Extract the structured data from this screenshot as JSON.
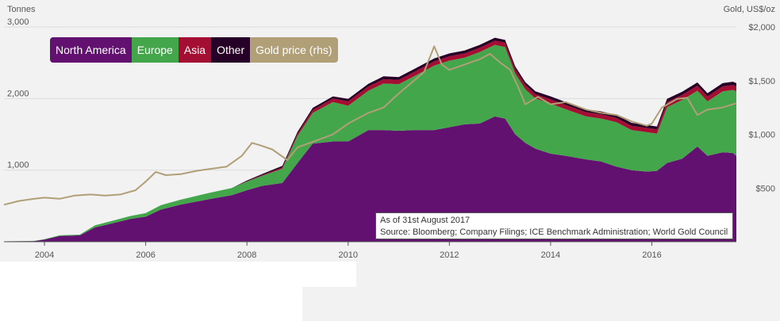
{
  "chart_data": {
    "type": "area",
    "title": "",
    "ylabel_left": "Tonnes",
    "ylabel_right": "Gold, US$/oz",
    "x_ticks": [
      2004,
      2006,
      2008,
      2010,
      2012,
      2014,
      2016
    ],
    "x_range": [
      2003.2,
      2017.67
    ],
    "y_left_ticks": [
      "3,000",
      "2,000",
      "1,000"
    ],
    "y_left_tick_values": [
      3000,
      2000,
      1000
    ],
    "y_left_range": [
      0,
      3000
    ],
    "y_right_ticks": [
      "$2,000",
      "$1,500",
      "$1,000",
      "$500"
    ],
    "y_right_tick_values": [
      2000,
      1500,
      1000,
      500
    ],
    "y_right_range": [
      0,
      2000
    ],
    "stacked": true,
    "x": [
      2003.2,
      2003.8,
      2004.0,
      2004.3,
      2004.7,
      2005.0,
      2005.3,
      2005.7,
      2006.0,
      2006.3,
      2006.7,
      2007.0,
      2007.3,
      2007.7,
      2008.0,
      2008.3,
      2008.7,
      2009.0,
      2009.3,
      2009.7,
      2010.0,
      2010.4,
      2010.7,
      2011.0,
      2011.3,
      2011.7,
      2012.0,
      2012.3,
      2012.6,
      2012.9,
      2013.1,
      2013.3,
      2013.5,
      2013.7,
      2014.0,
      2014.3,
      2014.7,
      2015.0,
      2015.3,
      2015.6,
      2015.9,
      2016.1,
      2016.3,
      2016.6,
      2016.9,
      2017.1,
      2017.4,
      2017.6,
      2017.67
    ],
    "series": [
      {
        "name": "North America",
        "color": "#631170",
        "values": [
          5,
          10,
          30,
          80,
          90,
          200,
          250,
          320,
          350,
          450,
          520,
          560,
          600,
          650,
          720,
          780,
          820,
          1100,
          1370,
          1400,
          1400,
          1560,
          1560,
          1550,
          1560,
          1560,
          1600,
          1640,
          1650,
          1750,
          1720,
          1500,
          1380,
          1300,
          1230,
          1200,
          1150,
          1120,
          1050,
          1000,
          980,
          990,
          1100,
          1160,
          1330,
          1200,
          1250,
          1240,
          1200
        ]
      },
      {
        "name": "Europe",
        "color": "#43a64b",
        "values": [
          1,
          2,
          5,
          10,
          10,
          30,
          35,
          40,
          50,
          60,
          70,
          80,
          90,
          100,
          120,
          140,
          200,
          380,
          430,
          550,
          500,
          550,
          650,
          650,
          750,
          900,
          930,
          930,
          1000,
          1000,
          1000,
          850,
          750,
          700,
          700,
          650,
          600,
          600,
          620,
          560,
          550,
          520,
          780,
          820,
          780,
          760,
          850,
          880,
          900
        ]
      },
      {
        "name": "Asia",
        "color": "#a40e32",
        "values": [
          0,
          0,
          0,
          0,
          0,
          0,
          0,
          0,
          0,
          0,
          0,
          0,
          0,
          0,
          5,
          10,
          20,
          30,
          40,
          50,
          60,
          60,
          60,
          60,
          60,
          60,
          60,
          60,
          60,
          60,
          60,
          60,
          60,
          60,
          60,
          60,
          60,
          60,
          60,
          60,
          60,
          60,
          70,
          70,
          70,
          70,
          70,
          70,
          70
        ]
      },
      {
        "name": "Other",
        "color": "#260026",
        "values": [
          0,
          0,
          0,
          0,
          0,
          0,
          0,
          0,
          0,
          0,
          0,
          0,
          0,
          0,
          10,
          15,
          20,
          25,
          30,
          30,
          35,
          35,
          40,
          40,
          40,
          40,
          40,
          40,
          40,
          40,
          40,
          40,
          40,
          40,
          40,
          40,
          40,
          40,
          40,
          40,
          40,
          40,
          45,
          45,
          45,
          45,
          45,
          45,
          45
        ]
      }
    ],
    "gold_price": {
      "name": "Gold price (rhs)",
      "color": "#b09f77",
      "x": [
        2003.2,
        2003.5,
        2003.8,
        2004.0,
        2004.3,
        2004.6,
        2004.9,
        2005.2,
        2005.5,
        2005.8,
        2006.0,
        2006.2,
        2006.4,
        2006.7,
        2007.0,
        2007.3,
        2007.6,
        2007.9,
        2008.1,
        2008.25,
        2008.5,
        2008.8,
        2009.0,
        2009.3,
        2009.7,
        2010.0,
        2010.4,
        2010.7,
        2011.0,
        2011.3,
        2011.5,
        2011.7,
        2011.85,
        2012.0,
        2012.3,
        2012.6,
        2012.8,
        2013.0,
        2013.2,
        2013.35,
        2013.5,
        2013.75,
        2014.0,
        2014.3,
        2014.7,
        2015.0,
        2015.3,
        2015.6,
        2015.9,
        2016.0,
        2016.2,
        2016.5,
        2016.7,
        2016.9,
        2017.1,
        2017.4,
        2017.67
      ],
      "values": [
        345,
        380,
        400,
        410,
        400,
        430,
        440,
        430,
        440,
        480,
        560,
        650,
        620,
        630,
        660,
        680,
        700,
        800,
        920,
        900,
        860,
        760,
        880,
        930,
        1000,
        1100,
        1200,
        1250,
        1380,
        1500,
        1580,
        1820,
        1650,
        1600,
        1650,
        1700,
        1750,
        1670,
        1600,
        1450,
        1280,
        1350,
        1280,
        1300,
        1230,
        1200,
        1180,
        1120,
        1080,
        1100,
        1250,
        1330,
        1340,
        1180,
        1230,
        1250,
        1290
      ]
    }
  },
  "legend": {
    "items": [
      {
        "label": "North America",
        "color": "#631170"
      },
      {
        "label": "Europe",
        "color": "#43a64b"
      },
      {
        "label": "Asia",
        "color": "#a40e32"
      },
      {
        "label": "Other",
        "color": "#260026"
      },
      {
        "label": "Gold price (rhs)",
        "color": "#b09f77"
      }
    ]
  },
  "annotation": {
    "date_line": "As of 31st August 2017",
    "source_line": "Source: Bloomberg; Company Filings; ICE Benchmark Administration; World Gold Council"
  }
}
